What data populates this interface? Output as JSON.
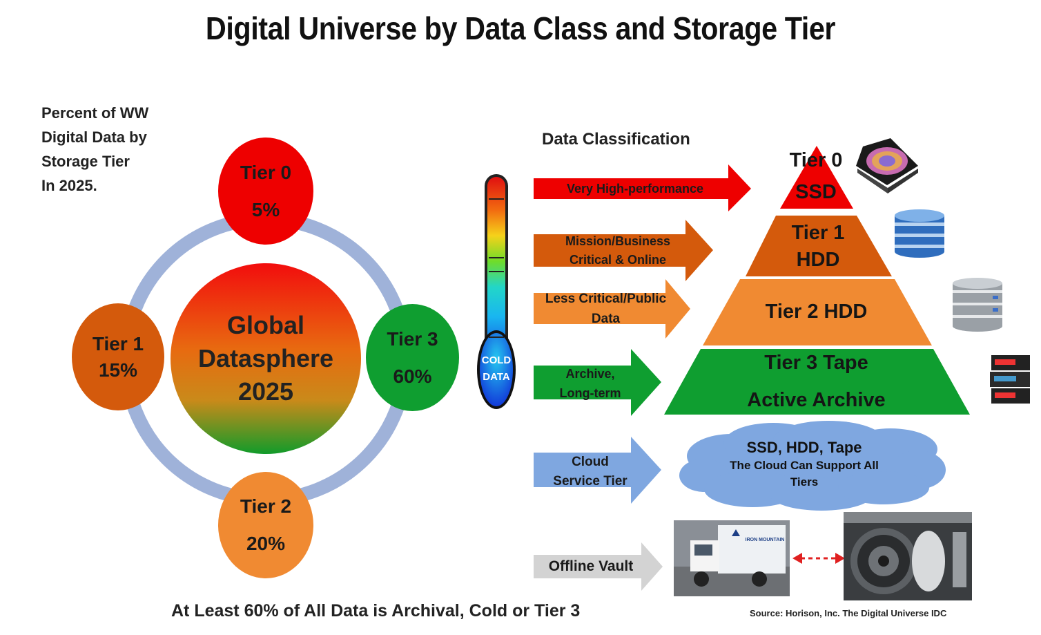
{
  "title": "Digital Universe by Data Class and Storage Tier",
  "caption": [
    "Percent of WW",
    "Digital Data by",
    "Storage Tier",
    "In 2025."
  ],
  "center": {
    "lines": [
      "Global",
      "Datasphere",
      "2025"
    ]
  },
  "tiers": {
    "t0": {
      "label": "Tier 0",
      "value": "5%"
    },
    "t1": {
      "label": "Tier 1",
      "value": "15%"
    },
    "t2": {
      "label": "Tier 2",
      "value": "20%"
    },
    "t3": {
      "label": "Tier 3",
      "value": "60%"
    }
  },
  "data_classification_title": "Data Classification",
  "thermometer": {
    "label1": "COLD",
    "label2": "DATA"
  },
  "classes": {
    "very_high": "Very High-performance",
    "mission": [
      "Mission/Business",
      "Critical & Online"
    ],
    "less_critical": [
      "Less Critical/Public",
      "Data"
    ],
    "archive": [
      "Archive,",
      "Long-term"
    ],
    "cloud": [
      "Cloud",
      "Service Tier"
    ],
    "offline": "Offline Vault"
  },
  "pyramid": {
    "tier0": [
      "Tier 0",
      "SSD"
    ],
    "tier1": [
      "Tier 1",
      "HDD"
    ],
    "tier2": "Tier 2 HDD",
    "tier3": [
      "Tier 3 Tape",
      "Active Archive"
    ]
  },
  "cloud": {
    "line1": "SSD, HDD, Tape",
    "line2": "The Cloud Can Support All",
    "line3": "Tiers"
  },
  "truck": {
    "logo_text": "IRON MOUNTAIN"
  },
  "bottom_note": "At Least  60% of All Data is Archival, Cold  or Tier 3",
  "source": "Source:  Horison,  Inc. The Digital Universe IDC",
  "colors": {
    "red": "#ee0000",
    "dark_orange": "#d45a0c",
    "orange": "#f08a32",
    "green": "#0f9e30",
    "blue": "#7fa7e0",
    "ring": "#9fb2d9",
    "gray": "#d3d3d3"
  }
}
